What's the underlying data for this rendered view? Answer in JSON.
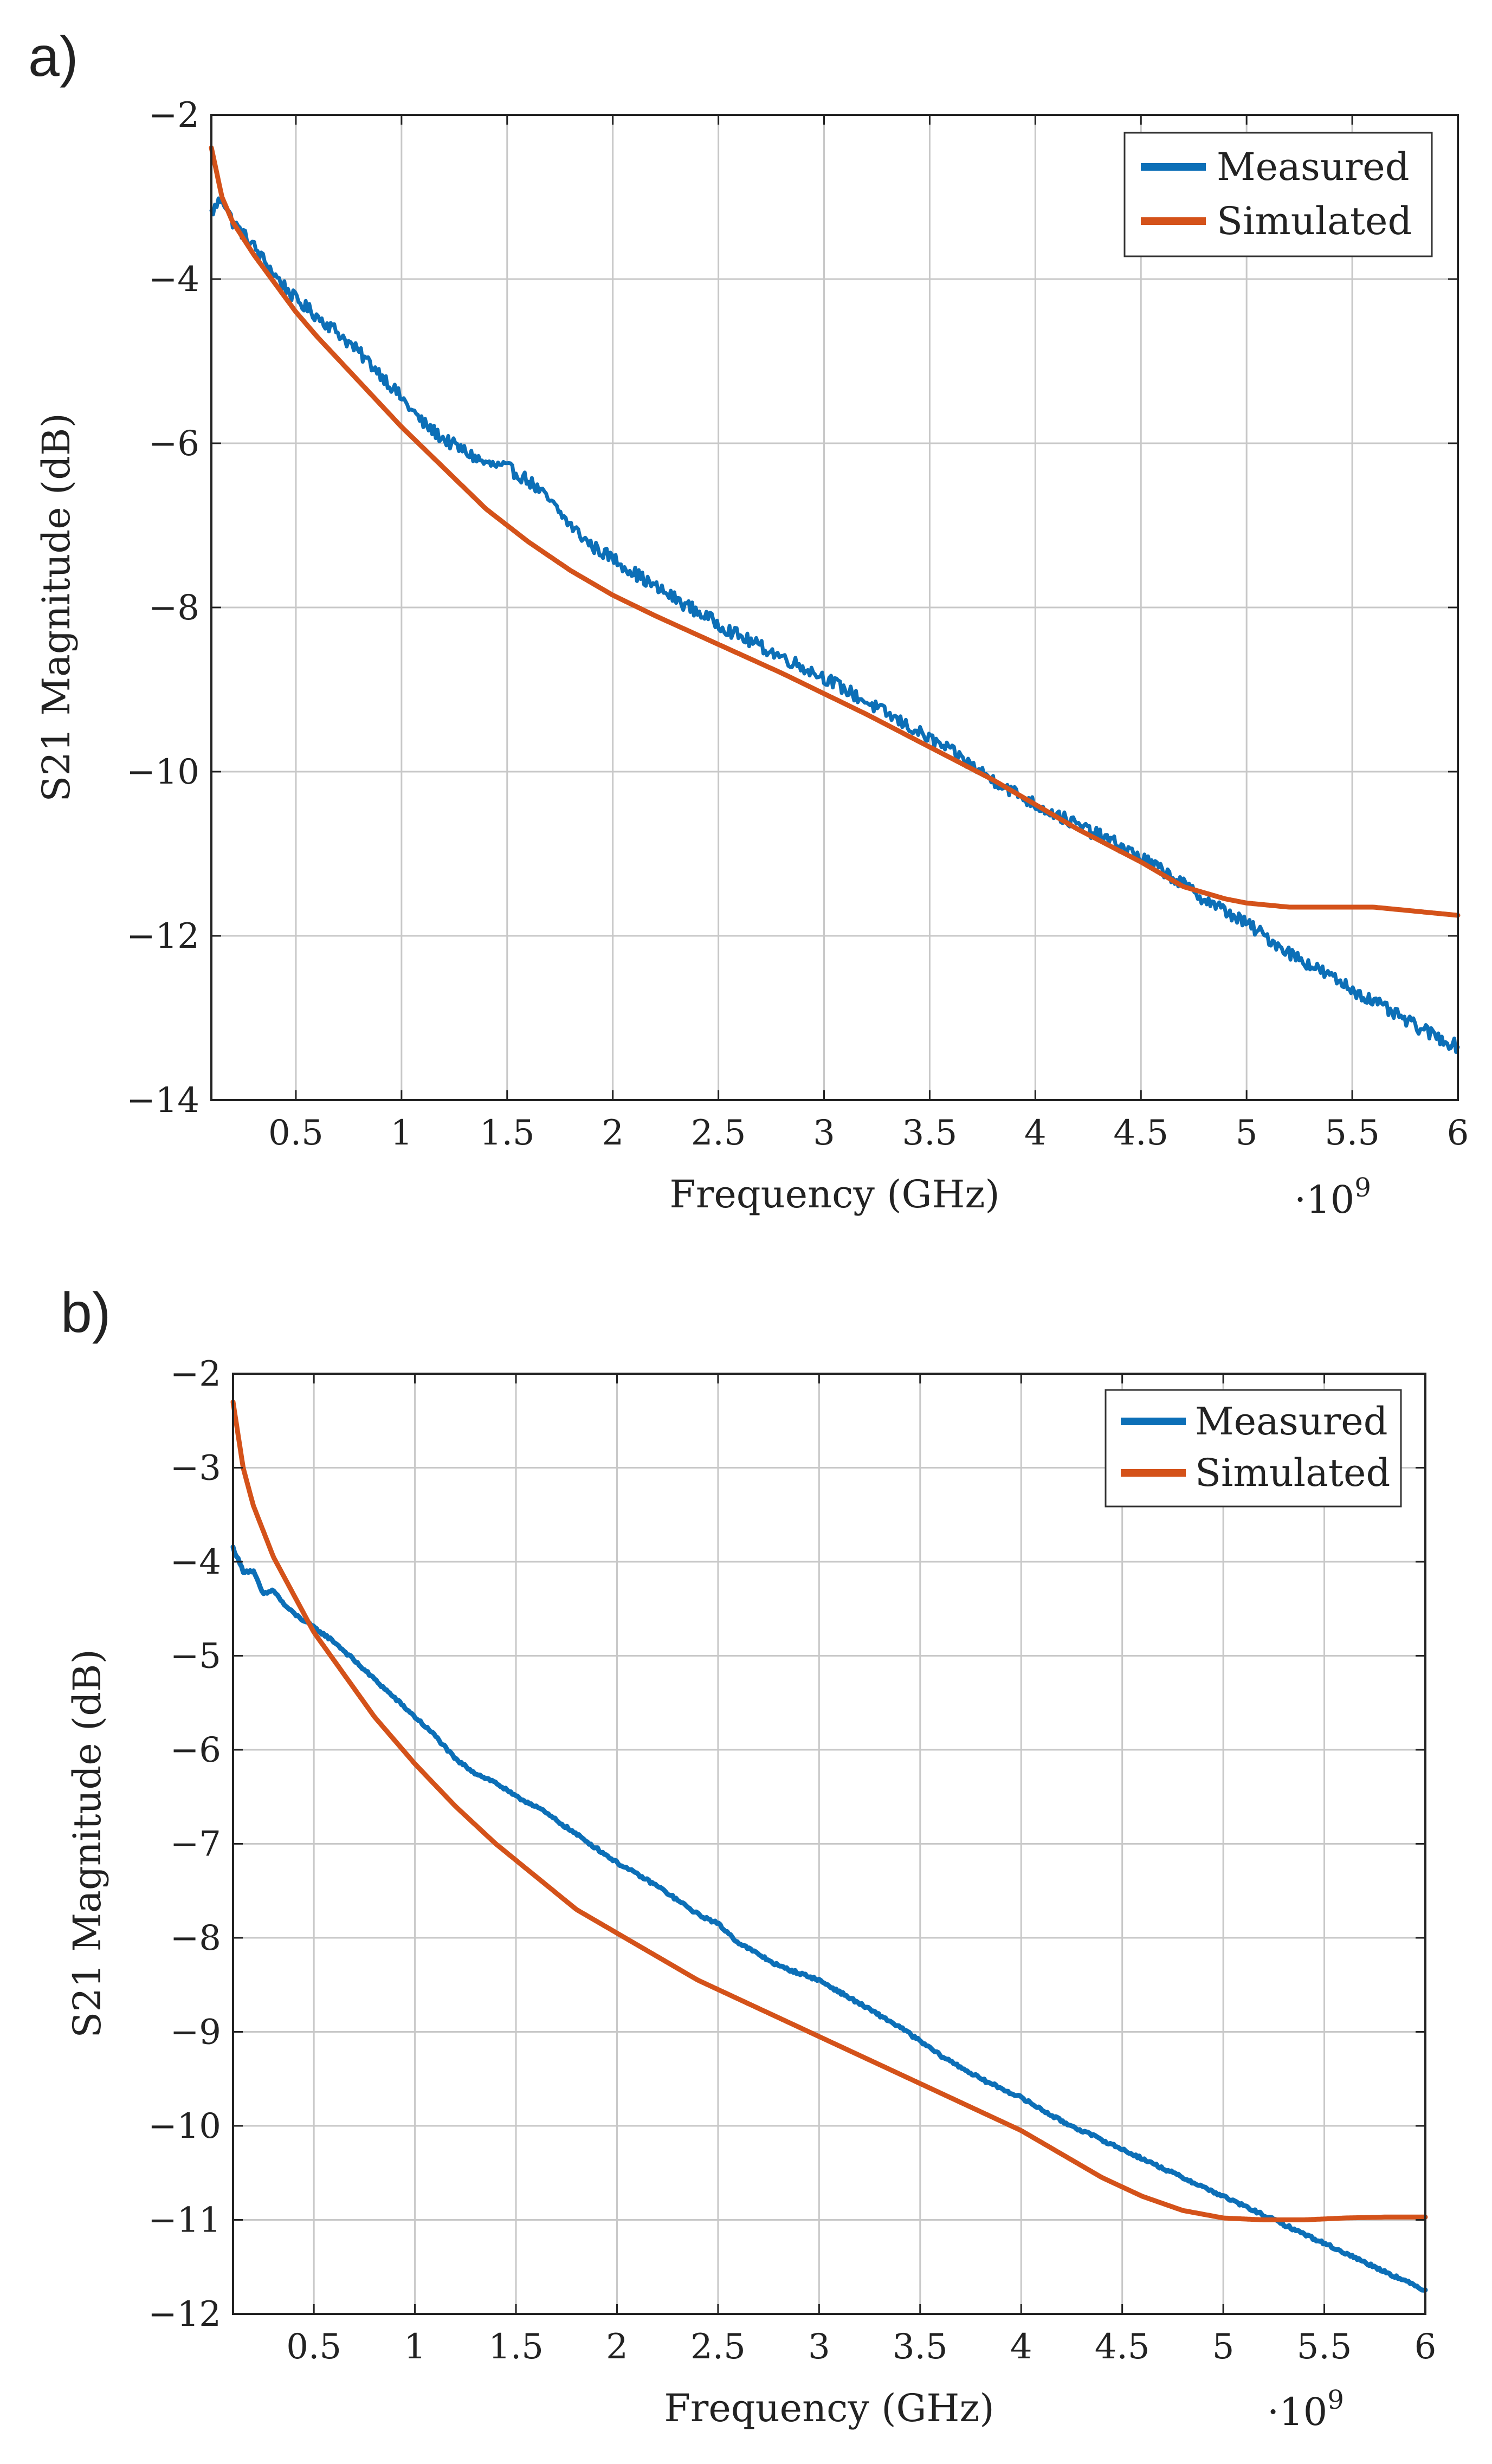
{
  "chart_data": [
    {
      "panel_label": "a)",
      "type": "line",
      "xlabel": "Frequency (GHz)",
      "ylabel": "S21 Magnitude (dB)",
      "x_multiplier_label": "·10",
      "x_multiplier_exp": "9",
      "xlim": [
        0.1,
        6
      ],
      "ylim": [
        -14,
        -2
      ],
      "xticks": [
        0.5,
        1,
        1.5,
        2,
        2.5,
        3,
        3.5,
        4,
        4.5,
        5,
        5.5,
        6
      ],
      "xtick_labels": [
        "0.5",
        "1",
        "1.5",
        "2",
        "2.5",
        "3",
        "3.5",
        "4",
        "4.5",
        "5",
        "5.5",
        "6"
      ],
      "yticks": [
        -14,
        -12,
        -10,
        -8,
        -6,
        -4,
        -2
      ],
      "ytick_labels": [
        "−14",
        "−12",
        "−10",
        "−8",
        "−6",
        "−4",
        "−2"
      ],
      "grid": true,
      "legend_position": "top-right",
      "series": [
        {
          "name": "Measured",
          "color": "#0c6fb7",
          "noise": 0.08,
          "x": [
            0.1,
            0.15,
            0.2,
            0.3,
            0.4,
            0.5,
            0.6,
            0.7,
            0.8,
            0.9,
            1.0,
            1.1,
            1.2,
            1.3,
            1.4,
            1.5,
            1.6,
            1.7,
            1.8,
            1.9,
            2.0,
            2.2,
            2.4,
            2.6,
            2.8,
            3.0,
            3.2,
            3.4,
            3.6,
            3.8,
            4.0,
            4.2,
            4.4,
            4.6,
            4.8,
            5.0,
            5.2,
            5.4,
            5.6,
            5.8,
            6.0
          ],
          "values": [
            -3.2,
            -3.0,
            -3.3,
            -3.6,
            -3.95,
            -4.25,
            -4.45,
            -4.65,
            -4.9,
            -5.15,
            -5.45,
            -5.75,
            -5.95,
            -6.1,
            -6.25,
            -6.3,
            -6.45,
            -6.7,
            -7.0,
            -7.25,
            -7.4,
            -7.75,
            -8.05,
            -8.35,
            -8.6,
            -8.85,
            -9.15,
            -9.45,
            -9.75,
            -10.1,
            -10.4,
            -10.65,
            -10.9,
            -11.2,
            -11.55,
            -11.85,
            -12.2,
            -12.5,
            -12.8,
            -13.1,
            -13.35
          ]
        },
        {
          "name": "Simulated",
          "color": "#d4521a",
          "noise": 0,
          "x": [
            0.1,
            0.15,
            0.2,
            0.3,
            0.4,
            0.5,
            0.6,
            0.8,
            1.0,
            1.2,
            1.4,
            1.6,
            1.8,
            2.0,
            2.2,
            2.5,
            2.8,
            3.0,
            3.2,
            3.5,
            3.8,
            4.0,
            4.2,
            4.5,
            4.7,
            4.9,
            5.0,
            5.2,
            5.4,
            5.6,
            5.8,
            6.0
          ],
          "values": [
            -2.4,
            -3.0,
            -3.3,
            -3.7,
            -4.05,
            -4.4,
            -4.7,
            -5.25,
            -5.8,
            -6.3,
            -6.8,
            -7.2,
            -7.55,
            -7.85,
            -8.1,
            -8.45,
            -8.8,
            -9.05,
            -9.3,
            -9.7,
            -10.1,
            -10.4,
            -10.7,
            -11.1,
            -11.4,
            -11.55,
            -11.6,
            -11.65,
            -11.65,
            -11.65,
            -11.7,
            -11.75
          ]
        }
      ]
    },
    {
      "panel_label": "b)",
      "type": "line",
      "xlabel": "Frequency (GHz)",
      "ylabel": "S21 Magnitude (dB)",
      "x_multiplier_label": "·10",
      "x_multiplier_exp": "9",
      "xlim": [
        0.1,
        6
      ],
      "ylim": [
        -12,
        -2
      ],
      "xticks": [
        0.5,
        1,
        1.5,
        2,
        2.5,
        3,
        3.5,
        4,
        4.5,
        5,
        5.5,
        6
      ],
      "xtick_labels": [
        "0.5",
        "1",
        "1.5",
        "2",
        "2.5",
        "3",
        "3.5",
        "4",
        "4.5",
        "5",
        "5.5",
        "6"
      ],
      "yticks": [
        -12,
        -11,
        -10,
        -9,
        -8,
        -7,
        -6,
        -5,
        -4,
        -3,
        -2
      ],
      "ytick_labels": [
        "−12",
        "−11",
        "−10",
        "−9",
        "−8",
        "−7",
        "−6",
        "−5",
        "−4",
        "−3",
        "−2"
      ],
      "grid": true,
      "legend_position": "top-right",
      "series": [
        {
          "name": "Measured",
          "color": "#0c6fb7",
          "noise": 0.015,
          "x": [
            0.1,
            0.15,
            0.2,
            0.25,
            0.3,
            0.35,
            0.4,
            0.5,
            0.6,
            0.7,
            0.8,
            0.9,
            1.0,
            1.1,
            1.2,
            1.3,
            1.4,
            1.5,
            1.6,
            1.7,
            1.8,
            1.9,
            2.0,
            2.2,
            2.4,
            2.5,
            2.6,
            2.8,
            3.0,
            3.2,
            3.4,
            3.6,
            3.8,
            4.0,
            4.2,
            4.4,
            4.6,
            4.8,
            5.0,
            5.2,
            5.4,
            5.6,
            5.8,
            6.0
          ],
          "values": [
            -3.85,
            -4.1,
            -4.1,
            -4.35,
            -4.3,
            -4.45,
            -4.55,
            -4.7,
            -4.85,
            -5.05,
            -5.25,
            -5.45,
            -5.65,
            -5.85,
            -6.1,
            -6.25,
            -6.35,
            -6.5,
            -6.6,
            -6.75,
            -6.9,
            -7.05,
            -7.2,
            -7.45,
            -7.75,
            -7.85,
            -8.05,
            -8.3,
            -8.45,
            -8.7,
            -8.95,
            -9.25,
            -9.5,
            -9.7,
            -9.95,
            -10.15,
            -10.35,
            -10.55,
            -10.75,
            -10.95,
            -11.15,
            -11.35,
            -11.55,
            -11.75
          ]
        },
        {
          "name": "Simulated",
          "color": "#d4521a",
          "noise": 0,
          "x": [
            0.1,
            0.15,
            0.2,
            0.3,
            0.4,
            0.5,
            0.6,
            0.8,
            1.0,
            1.2,
            1.4,
            1.6,
            1.8,
            2.0,
            2.2,
            2.4,
            2.6,
            2.8,
            3.0,
            3.2,
            3.4,
            3.6,
            3.8,
            4.0,
            4.2,
            4.4,
            4.6,
            4.8,
            5.0,
            5.2,
            5.4,
            5.6,
            5.8,
            6.0
          ],
          "values": [
            -2.3,
            -3.0,
            -3.4,
            -3.95,
            -4.35,
            -4.75,
            -5.05,
            -5.65,
            -6.15,
            -6.6,
            -7.0,
            -7.35,
            -7.7,
            -7.95,
            -8.2,
            -8.45,
            -8.65,
            -8.85,
            -9.05,
            -9.25,
            -9.45,
            -9.65,
            -9.85,
            -10.05,
            -10.3,
            -10.55,
            -10.75,
            -10.9,
            -10.98,
            -11.0,
            -11.0,
            -10.98,
            -10.97,
            -10.97
          ]
        }
      ]
    }
  ]
}
